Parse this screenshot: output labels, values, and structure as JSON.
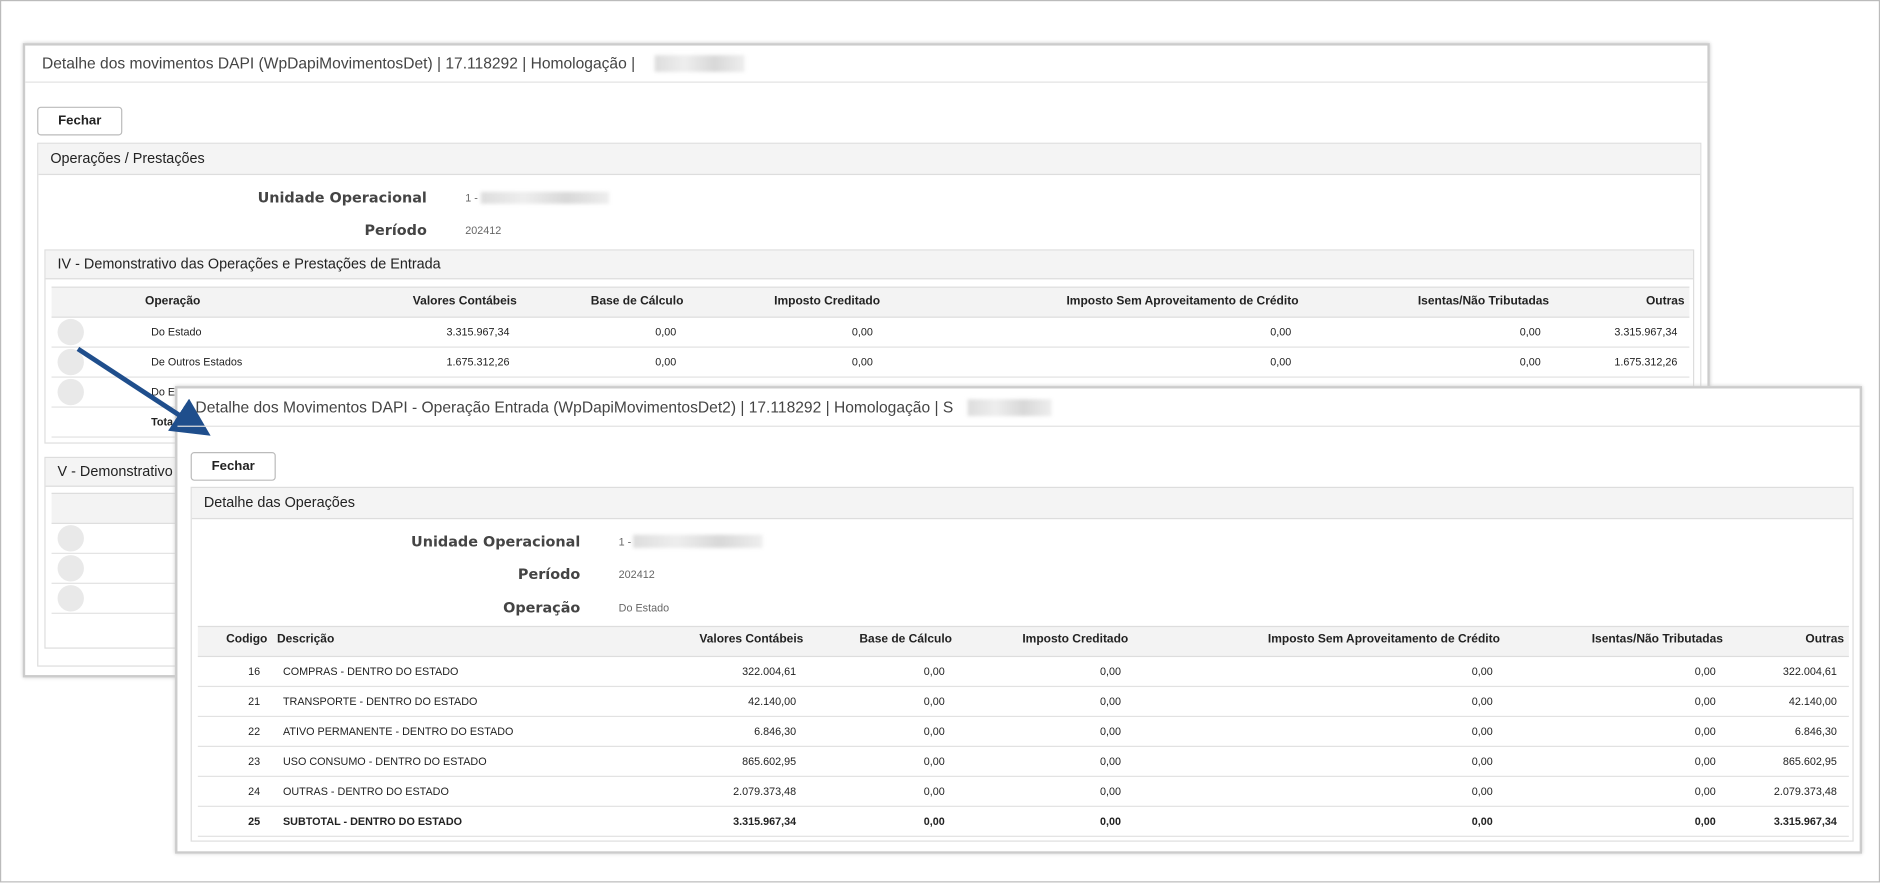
{
  "back_window": {
    "title": "Detalhe dos movimentos DAPI (WpDapiMovimentosDet) | 17.118292 | Homologação |",
    "close_button": "Fechar",
    "panel_title": "Operações / Prestações",
    "fields": [
      {
        "label": "Unidade Operacional",
        "value": "1 -"
      },
      {
        "label": "Período",
        "value": "202412"
      }
    ],
    "section_title": "IV - Demonstrativo das Operações e Prestações de Entrada",
    "table": {
      "headers": [
        "Operação",
        "Valores Contábeis",
        "Base de Cálculo",
        "Imposto Creditado",
        "Imposto Sem Aproveitamento de Crédito",
        "Isentas/Não Tributadas",
        "Outras"
      ],
      "rows": [
        [
          "Do Estado",
          "3.315.967,34",
          "0,00",
          "0,00",
          "0,00",
          "0,00",
          "3.315.967,34"
        ],
        [
          "De Outros Estados",
          "1.675.312,26",
          "0,00",
          "0,00",
          "0,00",
          "0,00",
          "1.675.312,26"
        ],
        [
          "Do E"
        ],
        [
          "Tota"
        ]
      ]
    },
    "section2_title": "V - Demonstrativo"
  },
  "front_window": {
    "title": "Detalhe dos Movimentos DAPI - Operação Entrada (WpDapiMovimentosDet2) | 17.118292 | Homologação | S",
    "close_button": "Fechar",
    "panel_title": "Detalhe das Operações",
    "fields": [
      {
        "label": "Unidade Operacional",
        "value": "1 -"
      },
      {
        "label": "Período",
        "value": "202412"
      },
      {
        "label": "Operação",
        "value": "Do Estado"
      }
    ],
    "table": {
      "headers": [
        "Codigo",
        "Descrição",
        "Valores Contábeis",
        "Base de Cálculo",
        "Imposto Creditado",
        "Imposto Sem Aproveitamento de Crédito",
        "Isentas/Não Tributadas",
        "Outras"
      ],
      "rows": [
        [
          "16",
          "COMPRAS - DENTRO DO ESTADO",
          "322.004,61",
          "0,00",
          "0,00",
          "0,00",
          "0,00",
          "322.004,61"
        ],
        [
          "21",
          "TRANSPORTE - DENTRO DO ESTADO",
          "42.140,00",
          "0,00",
          "0,00",
          "0,00",
          "0,00",
          "42.140,00"
        ],
        [
          "22",
          "ATIVO PERMANENTE - DENTRO DO ESTADO",
          "6.846,30",
          "0,00",
          "0,00",
          "0,00",
          "0,00",
          "6.846,30"
        ],
        [
          "23",
          "USO CONSUMO - DENTRO DO ESTADO",
          "865.602,95",
          "0,00",
          "0,00",
          "0,00",
          "0,00",
          "865.602,95"
        ],
        [
          "24",
          "OUTRAS - DENTRO DO ESTADO",
          "2.079.373,48",
          "0,00",
          "0,00",
          "0,00",
          "0,00",
          "2.079.373,48"
        ],
        [
          "25",
          "SUBTOTAL - DENTRO DO ESTADO",
          "3.315.967,34",
          "0,00",
          "0,00",
          "0,00",
          "0,00",
          "3.315.967,34"
        ]
      ]
    }
  }
}
